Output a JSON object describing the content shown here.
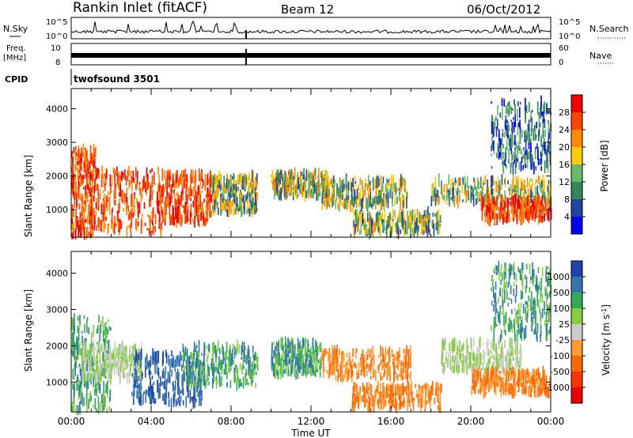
{
  "header": {
    "site": "Rankin Inlet (fitACF)",
    "beam": "Beam 12",
    "date": "06/Oct/2012"
  },
  "strip_panels": {
    "nsky": {
      "left_label": "N.Sky",
      "left_ticks": [
        "10^5",
        "10^0"
      ],
      "right_label": "N.Search",
      "right_ticks": [
        "10^5",
        "10^0"
      ]
    },
    "freq": {
      "left_label_top": "Freq.",
      "left_label_bot": "[MHz]",
      "left_ticks": [
        "10",
        "8"
      ],
      "right_label": "Nave",
      "right_ticks": [
        "60",
        "0"
      ]
    },
    "cpid": {
      "label": "CPID",
      "value": "twofsound  3501"
    }
  },
  "chart_data": [
    {
      "type": "heatmap",
      "panel": "power",
      "ylabel": "Slant Range [km]",
      "xlabel": "",
      "yticks": [
        1000,
        2000,
        3000,
        4000
      ],
      "ylim": [
        180,
        4600
      ],
      "xlim": [
        0,
        24
      ],
      "colorbar": {
        "title": "Power [dB]",
        "tick_labels": [
          "28",
          "24",
          "20",
          "16",
          "12",
          "8",
          "4"
        ],
        "colors": [
          "#ee0000",
          "#ff4400",
          "#ff8800",
          "#ffcc00",
          "#66bb66",
          "#338855",
          "#224499",
          "#0000ee"
        ]
      },
      "echo_regions": [
        {
          "t": [
            0.0,
            1.2
          ],
          "r": [
            200,
            2800
          ],
          "level": "high"
        },
        {
          "t": [
            1.2,
            4.5
          ],
          "r": [
            300,
            2200
          ],
          "level": "high"
        },
        {
          "t": [
            4.5,
            7.0
          ],
          "r": [
            600,
            2100
          ],
          "level": "high"
        },
        {
          "t": [
            7.0,
            9.3
          ],
          "r": [
            900,
            2000
          ],
          "level": "mid"
        },
        {
          "t": [
            10.0,
            12.8
          ],
          "r": [
            1400,
            2100
          ],
          "level": "mid"
        },
        {
          "t": [
            12.5,
            16.8
          ],
          "r": [
            1100,
            1900
          ],
          "level": "mid"
        },
        {
          "t": [
            14.0,
            18.5
          ],
          "r": [
            300,
            900
          ],
          "level": "mid"
        },
        {
          "t": [
            18.0,
            24.0
          ],
          "r": [
            1200,
            1900
          ],
          "level": "mid"
        },
        {
          "t": [
            20.5,
            24.0
          ],
          "r": [
            700,
            1300
          ],
          "level": "high"
        },
        {
          "t": [
            21.0,
            24.0
          ],
          "r": [
            2200,
            4200
          ],
          "level": "low"
        }
      ]
    },
    {
      "type": "heatmap",
      "panel": "velocity",
      "ylabel": "Slant Range [km]",
      "xlabel": "Time UT",
      "yticks": [
        1000,
        2000,
        3000,
        4000
      ],
      "ylim": [
        180,
        4600
      ],
      "xticks": [
        "00:00",
        "04:00",
        "08:00",
        "12:00",
        "16:00",
        "20:00",
        "00:00"
      ],
      "xlim": [
        0,
        24
      ],
      "colorbar": {
        "title": "Velocity [m s-1]",
        "tick_labels": [
          "1000",
          "500",
          "100",
          "25",
          "-25",
          "-100",
          "-500",
          "-1000"
        ],
        "colors": [
          "#2244aa",
          "#3377aa",
          "#33aa55",
          "#88cc44",
          "#cccccc",
          "#ff9933",
          "#ff6600",
          "#ff3300",
          "#ee0000"
        ]
      },
      "echo_regions": [
        {
          "t": [
            0.0,
            2.0
          ],
          "r": [
            200,
            2800
          ],
          "level": "positive"
        },
        {
          "t": [
            0.5,
            3.5
          ],
          "r": [
            1100,
            2000
          ],
          "level": "near-zero"
        },
        {
          "t": [
            3.0,
            6.5
          ],
          "r": [
            400,
            1800
          ],
          "level": "strong-positive"
        },
        {
          "t": [
            5.5,
            9.3
          ],
          "r": [
            900,
            2000
          ],
          "level": "positive"
        },
        {
          "t": [
            10.0,
            12.5
          ],
          "r": [
            1200,
            2100
          ],
          "level": "positive"
        },
        {
          "t": [
            12.5,
            17.0
          ],
          "r": [
            1100,
            1900
          ],
          "level": "negative"
        },
        {
          "t": [
            14.0,
            18.5
          ],
          "r": [
            300,
            900
          ],
          "level": "negative"
        },
        {
          "t": [
            18.5,
            22.5
          ],
          "r": [
            1300,
            2100
          ],
          "level": "near-zero"
        },
        {
          "t": [
            20.0,
            24.0
          ],
          "r": [
            700,
            1300
          ],
          "level": "negative"
        },
        {
          "t": [
            21.0,
            24.0
          ],
          "r": [
            2200,
            4200
          ],
          "level": "positive"
        }
      ]
    }
  ]
}
